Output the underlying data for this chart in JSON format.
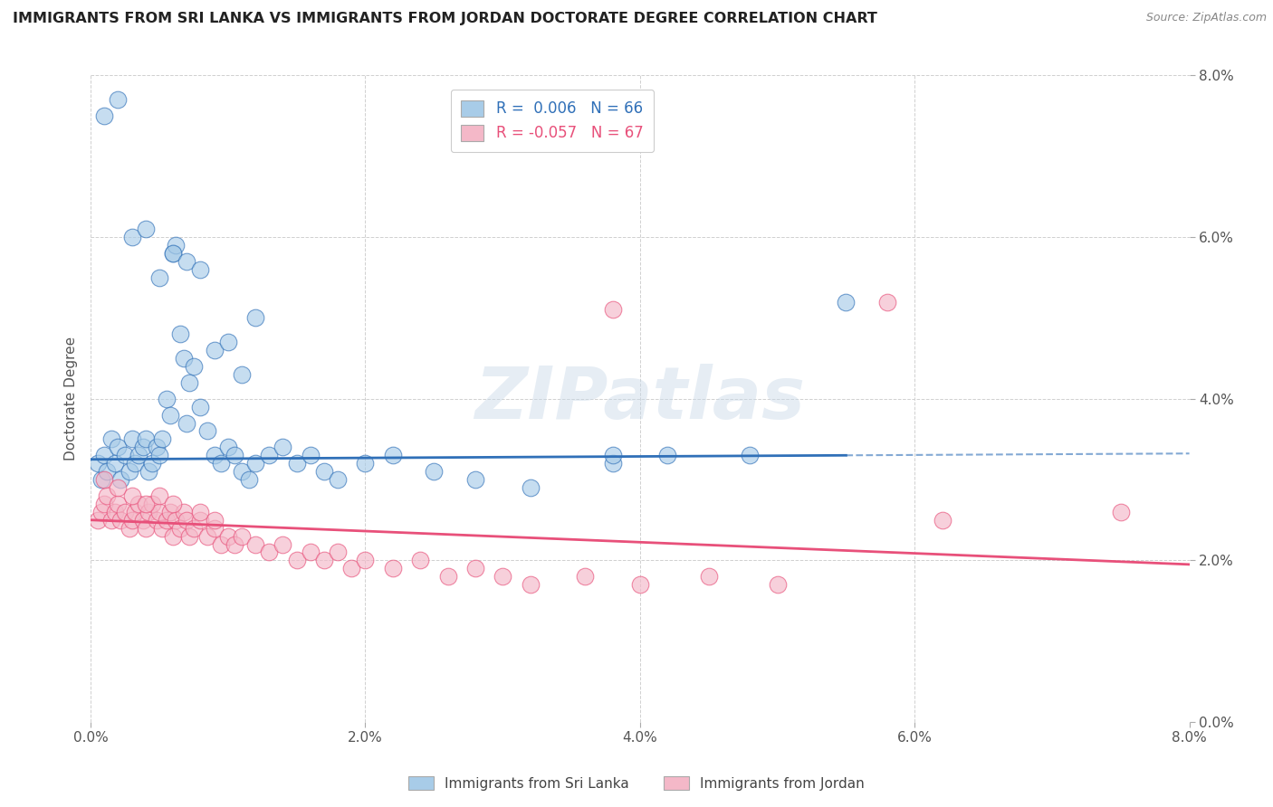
{
  "title": "IMMIGRANTS FROM SRI LANKA VS IMMIGRANTS FROM JORDAN DOCTORATE DEGREE CORRELATION CHART",
  "source": "Source: ZipAtlas.com",
  "ylabel": "Doctorate Degree",
  "xlim": [
    0.0,
    8.0
  ],
  "ylim": [
    0.0,
    8.0
  ],
  "yticks": [
    0.0,
    2.0,
    4.0,
    6.0,
    8.0
  ],
  "xticks": [
    0.0,
    2.0,
    4.0,
    6.0,
    8.0
  ],
  "color_blue": "#a8cce8",
  "color_pink": "#f4b8c8",
  "color_blue_line": "#3070b8",
  "color_pink_line": "#e8507a",
  "watermark_text": "ZIPatlas",
  "sri_lanka_x": [
    0.05,
    0.08,
    0.1,
    0.12,
    0.15,
    0.18,
    0.2,
    0.22,
    0.25,
    0.28,
    0.3,
    0.32,
    0.35,
    0.38,
    0.4,
    0.42,
    0.45,
    0.48,
    0.5,
    0.52,
    0.55,
    0.58,
    0.6,
    0.62,
    0.65,
    0.68,
    0.7,
    0.72,
    0.75,
    0.8,
    0.85,
    0.9,
    0.95,
    1.0,
    1.05,
    1.1,
    1.15,
    1.2,
    1.3,
    1.4,
    1.5,
    1.6,
    1.7,
    1.8,
    2.0,
    2.2,
    2.5,
    2.8,
    3.2,
    3.8,
    0.1,
    0.2,
    0.3,
    0.4,
    0.5,
    0.6,
    0.7,
    0.8,
    0.9,
    1.0,
    1.1,
    1.2,
    3.8,
    4.2,
    4.8,
    5.5
  ],
  "sri_lanka_y": [
    3.2,
    3.0,
    3.3,
    3.1,
    3.5,
    3.2,
    3.4,
    3.0,
    3.3,
    3.1,
    3.5,
    3.2,
    3.3,
    3.4,
    3.5,
    3.1,
    3.2,
    3.4,
    3.3,
    3.5,
    4.0,
    3.8,
    5.8,
    5.9,
    4.8,
    4.5,
    3.7,
    4.2,
    4.4,
    3.9,
    3.6,
    3.3,
    3.2,
    3.4,
    3.3,
    3.1,
    3.0,
    3.2,
    3.3,
    3.4,
    3.2,
    3.3,
    3.1,
    3.0,
    3.2,
    3.3,
    3.1,
    3.0,
    2.9,
    3.2,
    7.5,
    7.7,
    6.0,
    6.1,
    5.5,
    5.8,
    5.7,
    5.6,
    4.6,
    4.7,
    4.3,
    5.0,
    3.3,
    3.3,
    3.3,
    5.2
  ],
  "jordan_x": [
    0.05,
    0.08,
    0.1,
    0.12,
    0.15,
    0.18,
    0.2,
    0.22,
    0.25,
    0.28,
    0.3,
    0.32,
    0.35,
    0.38,
    0.4,
    0.42,
    0.45,
    0.48,
    0.5,
    0.52,
    0.55,
    0.58,
    0.6,
    0.62,
    0.65,
    0.68,
    0.7,
    0.72,
    0.75,
    0.8,
    0.85,
    0.9,
    0.95,
    1.0,
    1.05,
    1.1,
    1.2,
    1.3,
    1.4,
    1.5,
    1.6,
    1.7,
    1.8,
    1.9,
    2.0,
    2.2,
    2.4,
    2.6,
    2.8,
    3.0,
    3.2,
    3.6,
    4.0,
    4.5,
    5.0,
    3.8,
    5.8,
    6.2,
    7.5,
    0.1,
    0.2,
    0.3,
    0.4,
    0.5,
    0.6,
    0.8,
    0.9
  ],
  "jordan_y": [
    2.5,
    2.6,
    2.7,
    2.8,
    2.5,
    2.6,
    2.7,
    2.5,
    2.6,
    2.4,
    2.5,
    2.6,
    2.7,
    2.5,
    2.4,
    2.6,
    2.7,
    2.5,
    2.6,
    2.4,
    2.5,
    2.6,
    2.3,
    2.5,
    2.4,
    2.6,
    2.5,
    2.3,
    2.4,
    2.5,
    2.3,
    2.4,
    2.2,
    2.3,
    2.2,
    2.3,
    2.2,
    2.1,
    2.2,
    2.0,
    2.1,
    2.0,
    2.1,
    1.9,
    2.0,
    1.9,
    2.0,
    1.8,
    1.9,
    1.8,
    1.7,
    1.8,
    1.7,
    1.8,
    1.7,
    5.1,
    5.2,
    2.5,
    2.6,
    3.0,
    2.9,
    2.8,
    2.7,
    2.8,
    2.7,
    2.6,
    2.5
  ],
  "sl_trend_x0": 0.0,
  "sl_trend_x1": 5.5,
  "sl_trend_y0": 3.25,
  "sl_trend_y1": 3.3,
  "j_trend_x0": 0.0,
  "j_trend_x1": 8.0,
  "j_trend_y0": 2.5,
  "j_trend_y1": 1.95
}
